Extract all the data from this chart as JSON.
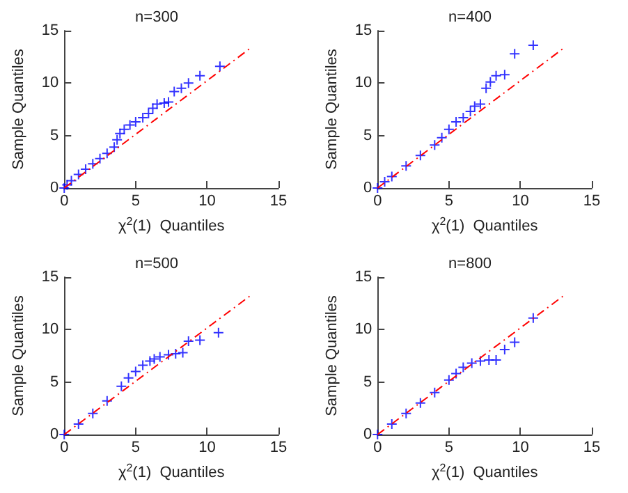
{
  "chart_data": [
    {
      "type": "scatter",
      "title": "n=300",
      "xlabel": "χ$^{2}$(1)  Quantiles",
      "ylabel": "Sample Quantiles",
      "xlim": [
        0,
        15
      ],
      "ylim": [
        0,
        15
      ],
      "xticks": [
        0,
        5,
        10,
        15
      ],
      "yticks": [
        0,
        5,
        10,
        15
      ],
      "series": [
        {
          "color": "#0000ff",
          "marker": "cross",
          "x": [
            0,
            0.2,
            0.5,
            1,
            1.5,
            2,
            2.5,
            3,
            3.5,
            3.7,
            3.9,
            4.2,
            4.6,
            5,
            5.5,
            5.9,
            6.2,
            6.5,
            7,
            7.3,
            7.7,
            8.2,
            8.7,
            9.5,
            10.9
          ],
          "values": [
            0,
            0.3,
            0.7,
            1.3,
            1.8,
            2.3,
            2.8,
            3.3,
            3.9,
            4.6,
            5.2,
            5.6,
            6,
            6.3,
            6.7,
            7.1,
            7.6,
            8,
            8.1,
            8.2,
            9.2,
            9.5,
            10,
            10.7,
            11.6
          ]
        },
        {
          "type": "line",
          "color": "#ff0000",
          "marker": "none",
          "line_style": "dashed",
          "x": [
            0,
            13
          ],
          "values": [
            0,
            13.3
          ]
        }
      ]
    },
    {
      "type": "scatter",
      "title": "n=400",
      "xlabel": "χ$^{2}$(1)  Quantiles",
      "ylabel": "Sample Quantiles",
      "xlim": [
        0,
        15
      ],
      "ylim": [
        0,
        15
      ],
      "xticks": [
        0,
        5,
        10,
        15
      ],
      "yticks": [
        0,
        5,
        10,
        15
      ],
      "series": [
        {
          "color": "#0000ff",
          "marker": "cross",
          "x": [
            0,
            0.5,
            1,
            2,
            3,
            4,
            4.5,
            5,
            5.5,
            6,
            6.5,
            6.8,
            7.2,
            7.6,
            7.9,
            8.3,
            8.9,
            9.6,
            10.9
          ],
          "values": [
            0,
            0.6,
            1.1,
            2.1,
            3.1,
            4.1,
            4.8,
            5.6,
            6.3,
            6.7,
            7.3,
            7.8,
            8,
            9.5,
            10.1,
            10.7,
            10.8,
            12.8,
            13.6
          ]
        },
        {
          "type": "line",
          "color": "#ff0000",
          "marker": "none",
          "line_style": "dashed",
          "x": [
            0,
            13
          ],
          "values": [
            0,
            13.3
          ]
        }
      ]
    },
    {
      "type": "scatter",
      "title": "n=500",
      "xlabel": "χ$^{2}$(1)  Quantiles",
      "ylabel": "Sample Quantiles",
      "xlim": [
        0,
        15
      ],
      "ylim": [
        0,
        15
      ],
      "xticks": [
        0,
        5,
        10,
        15
      ],
      "yticks": [
        0,
        5,
        10,
        15
      ],
      "series": [
        {
          "color": "#0000ff",
          "marker": "cross",
          "x": [
            0,
            1,
            2,
            3,
            4,
            4.5,
            5,
            5.5,
            6,
            6.3,
            6.7,
            7.3,
            7.8,
            8.3,
            8.7,
            9.5,
            10.8
          ],
          "values": [
            0,
            1,
            2,
            3.2,
            4.6,
            5.4,
            6,
            6.6,
            7,
            7.2,
            7.4,
            7.6,
            7.7,
            7.8,
            8.9,
            9,
            9.7
          ]
        },
        {
          "type": "line",
          "color": "#ff0000",
          "marker": "none",
          "line_style": "dashed",
          "x": [
            0,
            13
          ],
          "values": [
            0,
            13.2
          ]
        }
      ]
    },
    {
      "type": "scatter",
      "title": "n=800",
      "xlabel": "χ$^{2}$(1)  Quantiles",
      "ylabel": "Sample Quantiles",
      "xlim": [
        0,
        15
      ],
      "ylim": [
        0,
        15
      ],
      "xticks": [
        0,
        5,
        10,
        15
      ],
      "yticks": [
        0,
        5,
        10,
        15
      ],
      "series": [
        {
          "color": "#0000ff",
          "marker": "cross",
          "x": [
            0,
            1,
            2,
            3,
            4,
            5,
            5.5,
            6,
            6.6,
            7.2,
            7.8,
            8.3,
            8.9,
            9.6,
            10.9
          ],
          "values": [
            0,
            1,
            2,
            3,
            4,
            5.2,
            5.8,
            6.4,
            6.8,
            7,
            7.1,
            7.1,
            8.1,
            8.8,
            11.1
          ]
        },
        {
          "type": "line",
          "color": "#ff0000",
          "marker": "none",
          "line_style": "dashed",
          "x": [
            0,
            13
          ],
          "values": [
            0,
            13.2
          ]
        }
      ]
    }
  ]
}
